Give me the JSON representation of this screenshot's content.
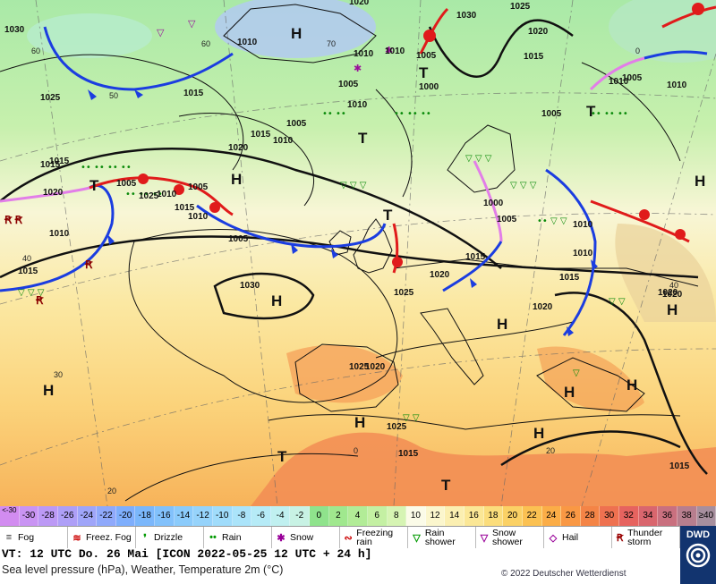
{
  "title": {
    "vt_line": "VT: 12 UTC Do.  26 Mai [ICON 2022-05-25  12 UTC + 24 h]",
    "subtitle": "Sea level pressure (hPa), Weather, Temperature 2m (°C)",
    "copyright": "© 2022 Deutscher Wetterdienst",
    "logo_text": "DWD"
  },
  "temperature_scale": [
    {
      "label": "<-30",
      "color": "#d28cf0"
    },
    {
      "label": "-30",
      "color": "#c994f3"
    },
    {
      "label": "-28",
      "color": "#bc99f5"
    },
    {
      "label": "-26",
      "color": "#ae9ff7"
    },
    {
      "label": "-24",
      "color": "#9fa5f9"
    },
    {
      "label": "-22",
      "color": "#8fa9fb"
    },
    {
      "label": "-20",
      "color": "#7eaefc"
    },
    {
      "label": "-18",
      "color": "#7bb7fb"
    },
    {
      "label": "-16",
      "color": "#82c1fb"
    },
    {
      "label": "-14",
      "color": "#8bcbfb"
    },
    {
      "label": "-12",
      "color": "#96d3fb"
    },
    {
      "label": "-10",
      "color": "#a0dcfb"
    },
    {
      "label": "-8",
      "color": "#abe4fa"
    },
    {
      "label": "-6",
      "color": "#b6ebf7"
    },
    {
      "label": "-4",
      "color": "#c0f0f0"
    },
    {
      "label": "-2",
      "color": "#c8f2e4"
    },
    {
      "label": "0",
      "color": "#8fe38c"
    },
    {
      "label": "2",
      "color": "#a0e88e"
    },
    {
      "label": "4",
      "color": "#b2ec97"
    },
    {
      "label": "6",
      "color": "#c4f0a3"
    },
    {
      "label": "8",
      "color": "#d6f4b3"
    },
    {
      "label": "10",
      "color": "#fbfbe8"
    },
    {
      "label": "12",
      "color": "#fbf6cd"
    },
    {
      "label": "14",
      "color": "#fbefb1"
    },
    {
      "label": "16",
      "color": "#fbe796"
    },
    {
      "label": "18",
      "color": "#fbdd7c"
    },
    {
      "label": "20",
      "color": "#fbd165"
    },
    {
      "label": "22",
      "color": "#fbc152"
    },
    {
      "label": "24",
      "color": "#fbad47"
    },
    {
      "label": "26",
      "color": "#f99844"
    },
    {
      "label": "28",
      "color": "#f48446"
    },
    {
      "label": "30",
      "color": "#ee7150"
    },
    {
      "label": "32",
      "color": "#e6635f"
    },
    {
      "label": "34",
      "color": "#d9666e"
    },
    {
      "label": "36",
      "color": "#c9707f"
    },
    {
      "label": "38",
      "color": "#b77e8e"
    },
    {
      "label": "≥40 °C",
      "color": "#a78f9e"
    }
  ],
  "legend": [
    {
      "label": "Fog",
      "icon": "fog-icon",
      "glyph": "≡",
      "color": "#333"
    },
    {
      "label": "Freez. Fog",
      "icon": "freezing-fog-icon",
      "glyph": "≋",
      "color": "#c00"
    },
    {
      "label": "Drizzle",
      "icon": "drizzle-icon",
      "glyph": "❜",
      "color": "#090"
    },
    {
      "label": "Rain",
      "icon": "rain-icon",
      "glyph": "••",
      "color": "#090"
    },
    {
      "label": "Snow",
      "icon": "snow-icon",
      "glyph": "✱",
      "color": "#909"
    },
    {
      "label": "Freezing rain",
      "icon": "freezing-rain-icon",
      "glyph": "∾",
      "color": "#c00"
    },
    {
      "label": "Rain shower",
      "icon": "rain-shower-icon",
      "glyph": "▽",
      "color": "#090"
    },
    {
      "label": "Snow shower",
      "icon": "snow-shower-icon",
      "glyph": "▽",
      "color": "#909"
    },
    {
      "label": "Hail",
      "icon": "hail-icon",
      "glyph": "◇",
      "color": "#909"
    },
    {
      "label": "Thunder storm",
      "icon": "thunderstorm-icon",
      "glyph": "Ꞧ",
      "color": "#900"
    }
  ],
  "map": {
    "pressure_labels": [
      "1030",
      "1020",
      "1025",
      "1030",
      "1015",
      "1005",
      "1010",
      "1010",
      "1015",
      "1010",
      "1005",
      "1010",
      "1000",
      "1025",
      "1020",
      "1005",
      "1010",
      "1005",
      "1015",
      "1020",
      "1015",
      "1010",
      "1005",
      "1015",
      "1010",
      "1005",
      "1005",
      "1000",
      "1005",
      "1010",
      "1020",
      "1025",
      "1020",
      "1025",
      "1030",
      "1020",
      "1010",
      "1015",
      "1015",
      "1020",
      "1025",
      "1010",
      "1005",
      "1015",
      "1010",
      "1020",
      "1015",
      "1015",
      "1025",
      "1015",
      "1020",
      "1010"
    ],
    "centers": [
      "H",
      "H",
      "H",
      "H",
      "H",
      "H",
      "H",
      "H",
      "H",
      "H",
      "H",
      "T",
      "T",
      "T",
      "T",
      "T",
      "T",
      "T"
    ]
  },
  "colors": {
    "cold_front": "#1b3de0",
    "warm_front": "#e01b1b",
    "occlusion": "#e27ee8"
  }
}
